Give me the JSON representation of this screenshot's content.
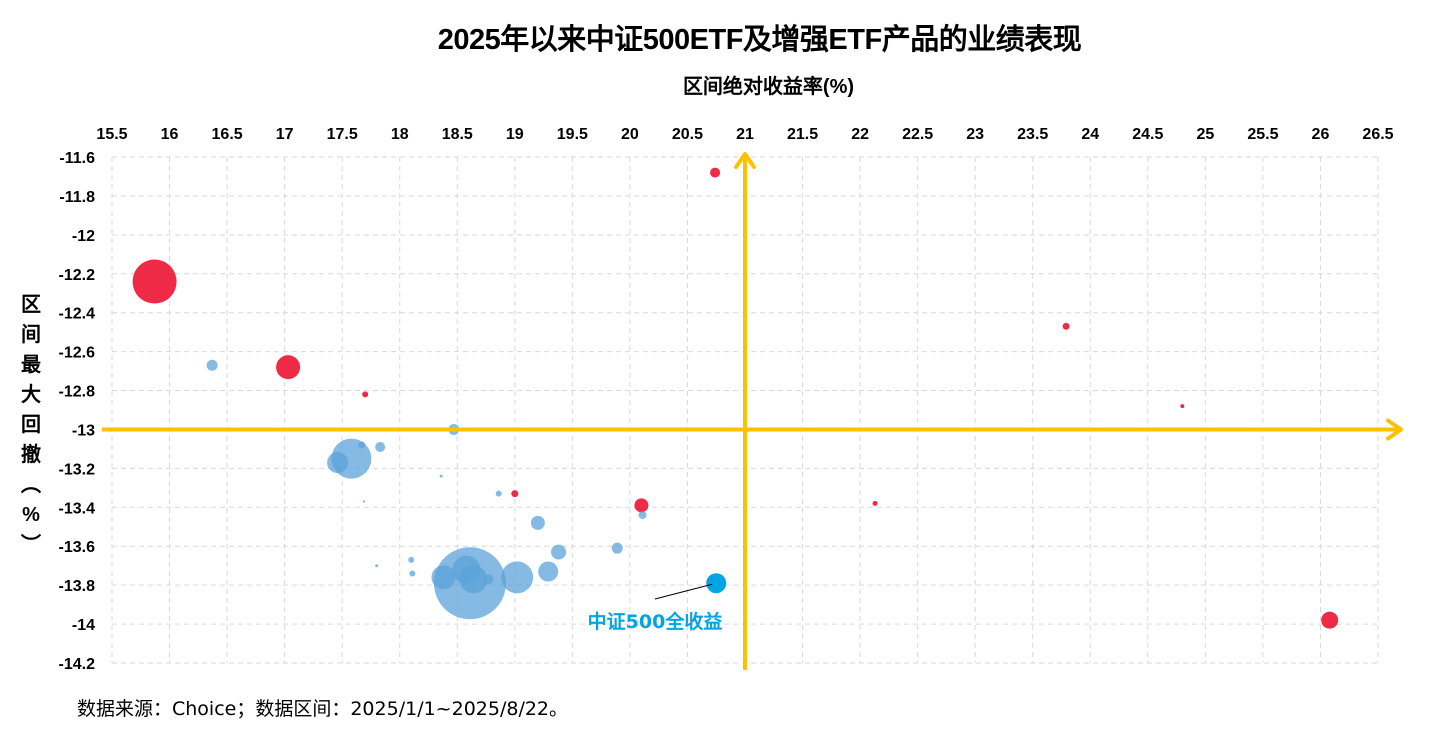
{
  "chart_data": {
    "type": "scatter",
    "title": "2025年以来中证500ETF及增强ETF产品的业绩表现",
    "xlabel": "区间绝对收益率(%)",
    "ylabel": "区间最大回撤（%）",
    "ylabel_chars": [
      "区",
      "间",
      "最",
      "大",
      "回",
      "撤",
      "︵",
      "%",
      "︶"
    ],
    "xlim": [
      15.5,
      26.5
    ],
    "ylim": [
      -14.2,
      -11.6
    ],
    "x_ticks": [
      "15.5",
      "16",
      "16.5",
      "17",
      "17.5",
      "18",
      "18.5",
      "19",
      "19.5",
      "20",
      "20.5",
      "21",
      "21.5",
      "22",
      "22.5",
      "23",
      "23.5",
      "24",
      "24.5",
      "25",
      "25.5",
      "26",
      "26.5"
    ],
    "y_ticks": [
      "-11.6",
      "-11.8",
      "-12",
      "-12.2",
      "-12.4",
      "-12.6",
      "-12.8",
      "-13",
      "-13.2",
      "-13.4",
      "-13.6",
      "-13.8",
      "-14",
      "-14.2"
    ],
    "grid": true,
    "reference_lines": {
      "x": 21,
      "y": -13,
      "color": "#FFC000"
    },
    "colors": {
      "red": "#EE2A47",
      "blue": "#5BA3D9",
      "darkblue": "#0F6FC0",
      "cyan": "#00A6E4",
      "grid": "#D9D9D9"
    },
    "series": [
      {
        "name": "red",
        "points": [
          {
            "x": 15.87,
            "y": -12.24,
            "size": 22
          },
          {
            "x": 17.03,
            "y": -12.68,
            "size": 12
          },
          {
            "x": 17.7,
            "y": -12.82,
            "size": 3
          },
          {
            "x": 19.0,
            "y": -13.33,
            "size": 3.5
          },
          {
            "x": 20.1,
            "y": -13.39,
            "size": 7
          },
          {
            "x": 20.74,
            "y": -11.68,
            "size": 5
          },
          {
            "x": 22.13,
            "y": -13.38,
            "size": 2.5
          },
          {
            "x": 23.79,
            "y": -12.47,
            "size": 3.5
          },
          {
            "x": 24.8,
            "y": -12.88,
            "size": 2
          },
          {
            "x": 26.08,
            "y": -13.98,
            "size": 8.5
          }
        ]
      },
      {
        "name": "blue",
        "points": [
          {
            "x": 16.37,
            "y": -12.67,
            "size": 5.5
          },
          {
            "x": 17.58,
            "y": -13.15,
            "size": 20
          },
          {
            "x": 17.46,
            "y": -13.17,
            "size": 10.5
          },
          {
            "x": 17.67,
            "y": -13.08,
            "size": 3.5
          },
          {
            "x": 17.83,
            "y": -13.09,
            "size": 5
          },
          {
            "x": 18.47,
            "y": -13.0,
            "size": 5.5
          },
          {
            "x": 18.36,
            "y": -13.24,
            "size": 1.5
          },
          {
            "x": 17.69,
            "y": -13.37,
            "size": 1.2
          },
          {
            "x": 17.8,
            "y": -13.7,
            "size": 1.5
          },
          {
            "x": 18.1,
            "y": -13.67,
            "size": 3
          },
          {
            "x": 18.11,
            "y": -13.74,
            "size": 3
          },
          {
            "x": 18.86,
            "y": -13.33,
            "size": 3
          },
          {
            "x": 19.2,
            "y": -13.48,
            "size": 7
          },
          {
            "x": 19.38,
            "y": -13.63,
            "size": 7.5
          },
          {
            "x": 19.29,
            "y": -13.73,
            "size": 10
          },
          {
            "x": 19.02,
            "y": -13.76,
            "size": 16
          },
          {
            "x": 18.38,
            "y": -13.76,
            "size": 12
          },
          {
            "x": 18.61,
            "y": -13.79,
            "size": 36
          },
          {
            "x": 18.58,
            "y": -13.72,
            "size": 14
          },
          {
            "x": 18.64,
            "y": -13.77,
            "size": 14
          },
          {
            "x": 18.77,
            "y": -13.77,
            "size": 5
          },
          {
            "x": 19.89,
            "y": -13.61,
            "size": 5.5
          },
          {
            "x": 20.11,
            "y": -13.44,
            "size": 4
          }
        ]
      },
      {
        "name": "中证500全收益",
        "points": [
          {
            "x": 20.75,
            "y": -13.79,
            "size": 10
          }
        ]
      }
    ],
    "annotations": [
      {
        "text": "中证500全收益",
        "target_x": 20.75,
        "target_y": -13.79
      }
    ]
  },
  "footer": {
    "source": "数据来源：Choice；数据区间：2025/1/1~2025/8/22。"
  }
}
